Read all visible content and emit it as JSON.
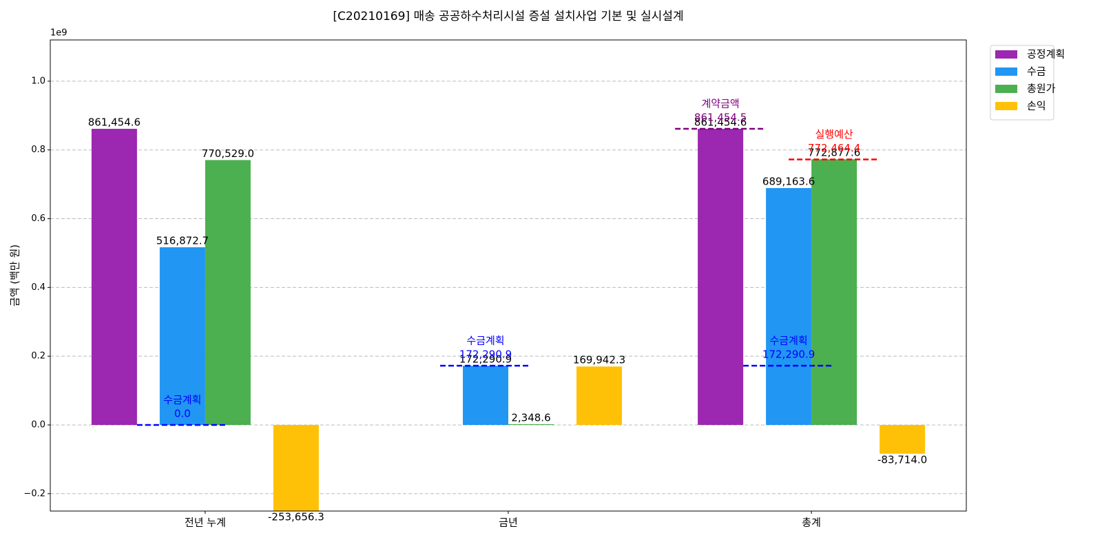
{
  "chart_data": {
    "type": "bar",
    "title": "[C20210169] 매송 공공하수처리시설 증설 설치사업 기본 및 실시설계",
    "y_label": "금액 (백만 원)",
    "y_offset_label": "1e9",
    "categories": [
      "전년 누계",
      "금년",
      "총계"
    ],
    "series": [
      {
        "name": "공정계획",
        "color": "#9c27b0",
        "values": [
          861454600,
          null,
          861454600
        ],
        "value_labels": [
          "861,454.6",
          null,
          "861,454.6"
        ],
        "reference": {
          "name": "계약금액",
          "color": "#800080",
          "values": [
            null,
            null,
            861454500
          ],
          "value_labels": [
            null,
            null,
            "861,454.5"
          ]
        }
      },
      {
        "name": "수금",
        "color": "#2196f3",
        "values": [
          516872700,
          172290900,
          689163600
        ],
        "value_labels": [
          "516,872.7",
          "172,290.9",
          "689,163.6"
        ],
        "reference": {
          "name": "수금계획",
          "color": "#0000ff",
          "values": [
            0,
            172290900,
            172290900
          ],
          "value_labels": [
            "0.0",
            "172,290.9",
            "172,290.9"
          ]
        }
      },
      {
        "name": "총원가",
        "color": "#4caf50",
        "values": [
          770529000,
          2348600,
          772877600
        ],
        "value_labels": [
          "770,529.0",
          "2,348.6",
          "772,877.6"
        ],
        "reference": {
          "name": "실행예산",
          "color": "#ff0000",
          "values": [
            null,
            null,
            772464400
          ],
          "value_labels": [
            null,
            null,
            "772,464.4"
          ]
        }
      },
      {
        "name": "손익",
        "color": "#ffc107",
        "values": [
          -253656300,
          169942300,
          -83714000
        ],
        "value_labels": [
          "-253,656.3",
          "169,942.3",
          "-83,714.0"
        ]
      }
    ],
    "ylim": [
      -250500000,
      1120000000
    ],
    "yticks": [
      {
        "value": -200000000,
        "label": "−0.2"
      },
      {
        "value": 0,
        "label": "0.0"
      },
      {
        "value": 200000000,
        "label": "0.2"
      },
      {
        "value": 400000000,
        "label": "0.4"
      },
      {
        "value": 600000000,
        "label": "0.6"
      },
      {
        "value": 800000000,
        "label": "0.8"
      },
      {
        "value": 1000000000,
        "label": "1.0"
      }
    ],
    "grid": true,
    "legend": "outside upper right"
  }
}
